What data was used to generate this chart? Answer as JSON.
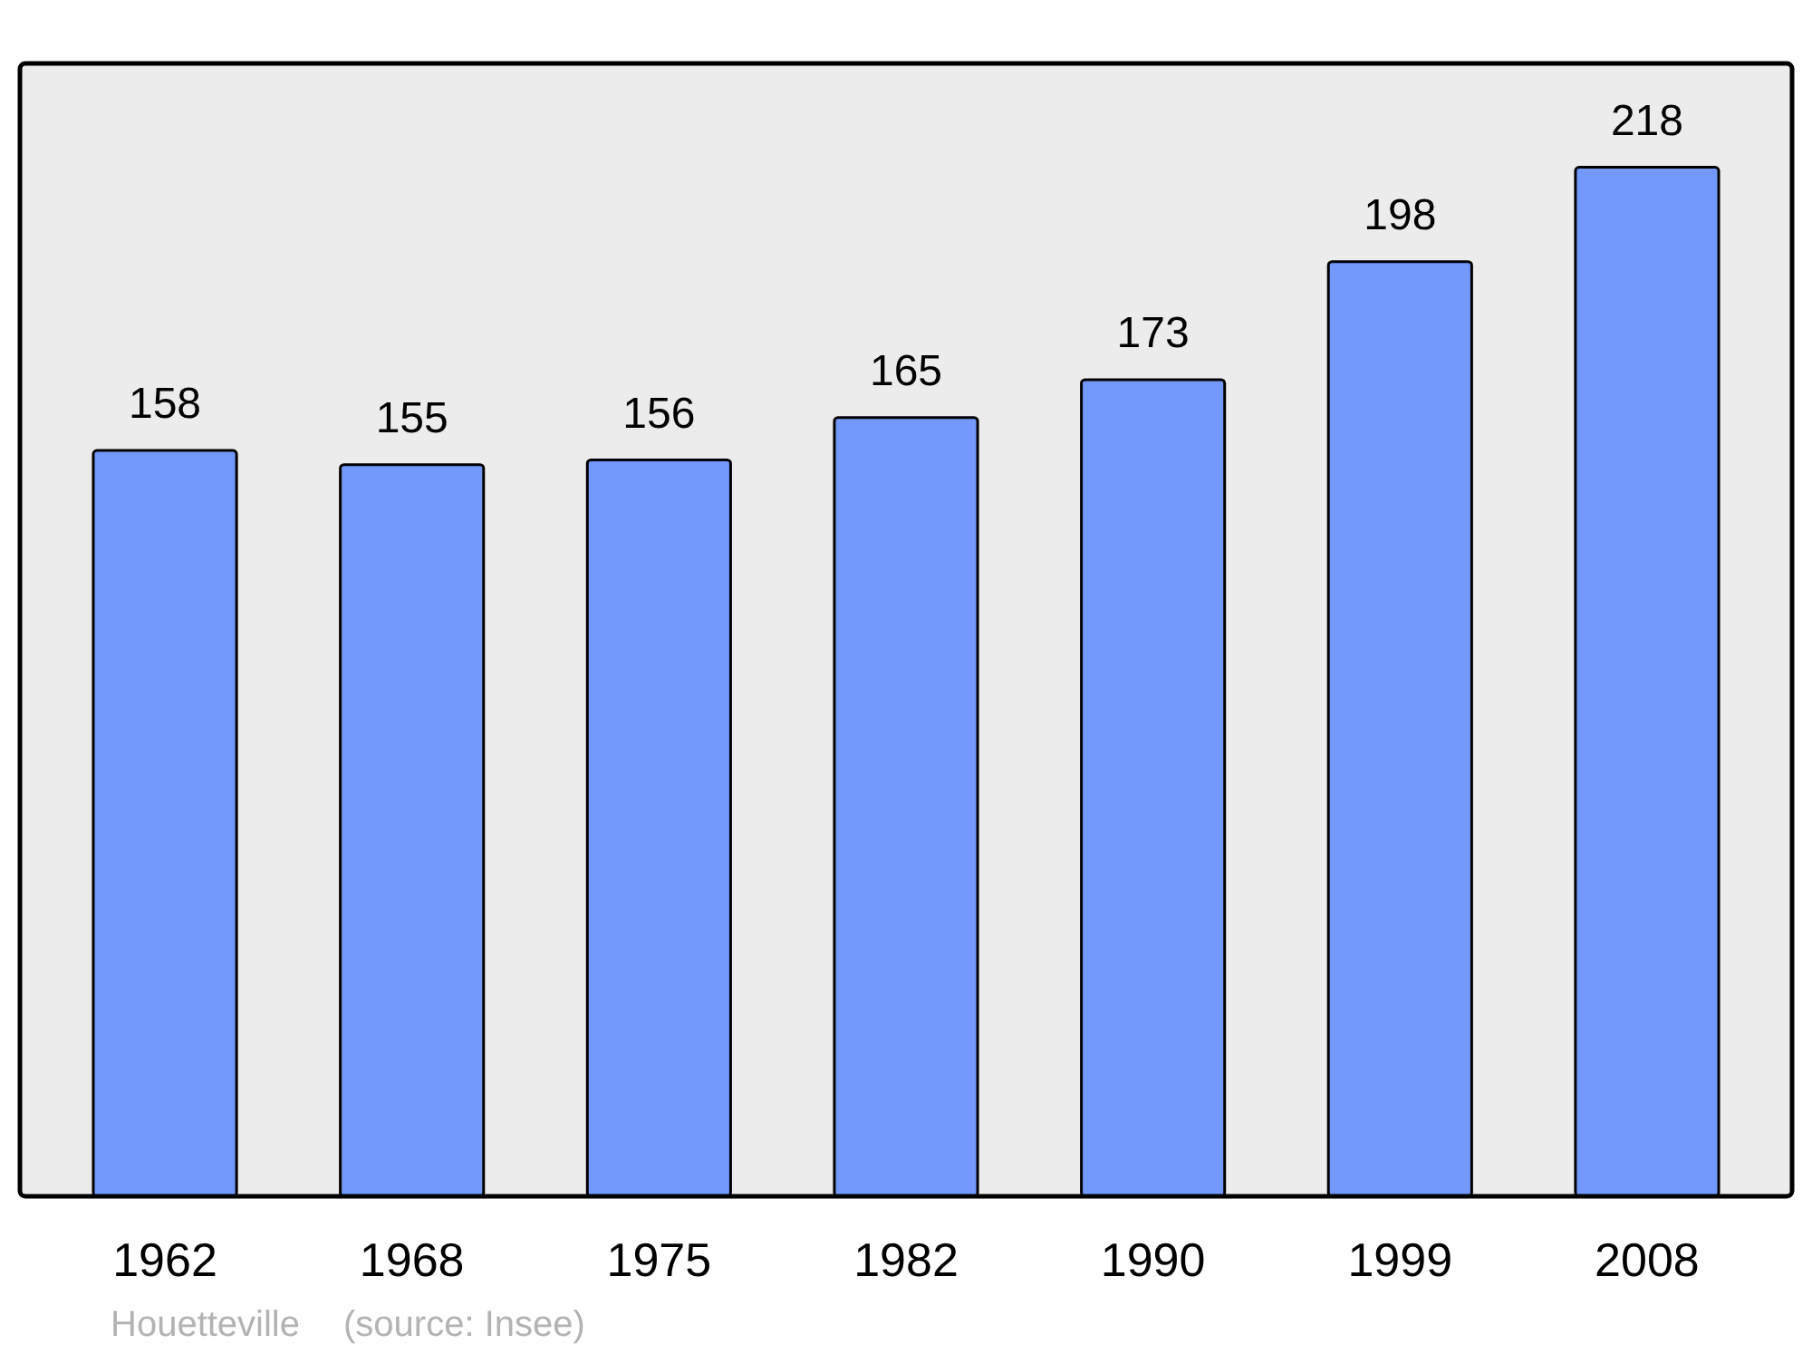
{
  "chart_data": {
    "type": "bar",
    "categories": [
      "1962",
      "1968",
      "1975",
      "1982",
      "1990",
      "1999",
      "2008"
    ],
    "values": [
      158,
      155,
      156,
      165,
      173,
      198,
      218
    ],
    "color": "#7399ff",
    "data_labels": true,
    "annotations": [
      "Houetteville",
      "(source: Insee)"
    ]
  }
}
